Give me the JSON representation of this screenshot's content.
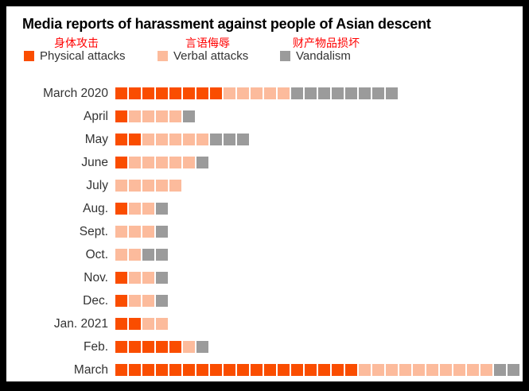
{
  "title": "Media reports of harassment against people of Asian descent",
  "annotations": [
    {
      "text": "身体攻击",
      "color": "#ff0000"
    },
    {
      "text": "言语侮辱",
      "color": "#ff0000"
    },
    {
      "text": "财产物品损坏",
      "color": "#ff0000"
    }
  ],
  "legend": [
    {
      "label": "Physical attacks",
      "color": "#fa4d00"
    },
    {
      "label": "Verbal attacks",
      "color": "#fcbb9c"
    },
    {
      "label": "Vandalism",
      "color": "#9b9b9b"
    }
  ],
  "chart_data": {
    "type": "bar",
    "subtype": "unit-square-stacked-horizontal",
    "title": "Media reports of harassment against people of Asian descent",
    "legend_position": "top",
    "categories": [
      "March 2020",
      "April",
      "May",
      "June",
      "July",
      "Aug.",
      "Sept.",
      "Oct.",
      "Nov.",
      "Dec.",
      "Jan. 2021",
      "Feb.",
      "March"
    ],
    "series": [
      {
        "name": "Physical attacks",
        "key": "physical-attacks",
        "color": "#fa4d00",
        "values": [
          8,
          1,
          2,
          1,
          0,
          1,
          0,
          0,
          1,
          1,
          2,
          5,
          18
        ]
      },
      {
        "name": "Verbal attacks",
        "key": "verbal-attacks",
        "color": "#fcbb9c",
        "values": [
          5,
          4,
          5,
          5,
          5,
          2,
          3,
          2,
          2,
          2,
          2,
          1,
          10
        ]
      },
      {
        "name": "Vandalism",
        "key": "vandalism",
        "color": "#9b9b9b",
        "values": [
          8,
          1,
          3,
          1,
          0,
          1,
          1,
          2,
          1,
          1,
          0,
          1,
          2
        ]
      }
    ],
    "totals": [
      21,
      6,
      10,
      7,
      5,
      4,
      4,
      4,
      4,
      4,
      4,
      7,
      30
    ]
  }
}
